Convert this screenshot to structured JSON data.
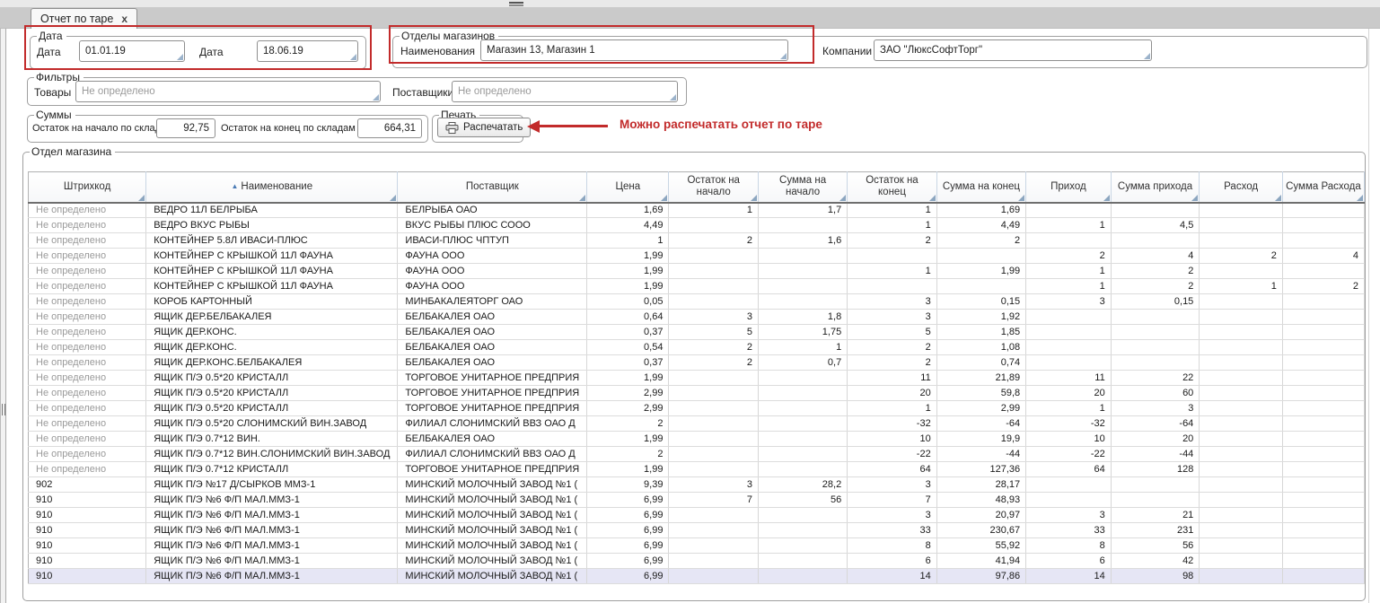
{
  "tab": {
    "title": "Отчет по таре",
    "close_glyph": "x"
  },
  "icons": {
    "tab_close": "close-icon",
    "collapse_grip": "grip-icon",
    "print": "printer-icon",
    "sort": "sort-asc-icon",
    "field_grip": "dropdown-grip-icon"
  },
  "groups": {
    "dates": {
      "legend": "Дата",
      "date_from_label": "Дата",
      "date_from": "01.01.19",
      "date_to_label": "Дата",
      "date_to": "18.06.19"
    },
    "departments": {
      "legend": "Отделы магазинов",
      "names_label": "Наименования",
      "names_value": "Магазин 13, Магазин 1",
      "company_label": "Компании",
      "company_value": "ЗАО \"ЛюксСофтТорг\""
    },
    "filters": {
      "legend": "Фильтры",
      "goods_label": "Товары",
      "goods_placeholder": "Не определено",
      "suppliers_label": "Поставщики",
      "suppliers_placeholder": "Не определено"
    },
    "sums": {
      "legend": "Суммы",
      "begin_label": "Остаток на начало по складам",
      "begin_value": "92,75",
      "end_label": "Остаток на конец по складам",
      "end_value": "664,31"
    },
    "print": {
      "legend": "Печать",
      "button_label": "Распечатать"
    }
  },
  "annotation": {
    "text": "Можно распечатать отчет по таре",
    "color": "#c22b2b"
  },
  "table": {
    "legend": "Отдел магазина",
    "undefined_text": "Не определено",
    "selected_row_index": 24,
    "columns": [
      {
        "label": "Штрихкод"
      },
      {
        "label": "Наименование",
        "sorted": "asc"
      },
      {
        "label": "Поставщик"
      },
      {
        "label": "Цена"
      },
      {
        "label": "Остаток на начало"
      },
      {
        "label": "Сумма на начало"
      },
      {
        "label": "Остаток на конец"
      },
      {
        "label": "Сумма на конец"
      },
      {
        "label": "Приход"
      },
      {
        "label": "Сумма прихода"
      },
      {
        "label": "Расход"
      },
      {
        "label": "Сумма Расхода"
      }
    ],
    "rows": [
      [
        "Не определено",
        "ВЕДРО 11Л БЕЛРЫБА",
        "БЕЛРЫБА ОАО",
        "1,69",
        "1",
        "1,7",
        "1",
        "1,69",
        "",
        "",
        "",
        ""
      ],
      [
        "Не определено",
        "ВЕДРО ВКУС РЫБЫ",
        "ВКУС РЫБЫ ПЛЮС СООО",
        "4,49",
        "",
        "",
        "1",
        "4,49",
        "1",
        "4,5",
        "",
        ""
      ],
      [
        "Не определено",
        "КОНТЕЙНЕР 5.8Л ИВАСИ-ПЛЮС",
        "ИВАСИ-ПЛЮС ЧПТУП",
        "1",
        "2",
        "1,6",
        "2",
        "2",
        "",
        "",
        "",
        ""
      ],
      [
        "Не определено",
        "КОНТЕЙНЕР С КРЫШКОЙ 11Л ФАУНА",
        "ФАУНА ООО",
        "1,99",
        "",
        "",
        "",
        "",
        "2",
        "4",
        "2",
        "4"
      ],
      [
        "Не определено",
        "КОНТЕЙНЕР С КРЫШКОЙ 11Л ФАУНА",
        "ФАУНА ООО",
        "1,99",
        "",
        "",
        "1",
        "1,99",
        "1",
        "2",
        "",
        ""
      ],
      [
        "Не определено",
        "КОНТЕЙНЕР С КРЫШКОЙ 11Л ФАУНА",
        "ФАУНА ООО",
        "1,99",
        "",
        "",
        "",
        "",
        "1",
        "2",
        "1",
        "2"
      ],
      [
        "Не определено",
        "КОРОБ КАРТОННЫЙ",
        "МИНБАКАЛЕЯТОРГ ОАО",
        "0,05",
        "",
        "",
        "3",
        "0,15",
        "3",
        "0,15",
        "",
        ""
      ],
      [
        "Не определено",
        "ЯЩИК ДЕР.БЕЛБАКАЛЕЯ",
        "БЕЛБАКАЛЕЯ ОАО",
        "0,64",
        "3",
        "1,8",
        "3",
        "1,92",
        "",
        "",
        "",
        ""
      ],
      [
        "Не определено",
        "ЯЩИК ДЕР.КОНС.",
        "БЕЛБАКАЛЕЯ ОАО",
        "0,37",
        "5",
        "1,75",
        "5",
        "1,85",
        "",
        "",
        "",
        ""
      ],
      [
        "Не определено",
        "ЯЩИК ДЕР.КОНС.",
        "БЕЛБАКАЛЕЯ ОАО",
        "0,54",
        "2",
        "1",
        "2",
        "1,08",
        "",
        "",
        "",
        ""
      ],
      [
        "Не определено",
        "ЯЩИК ДЕР.КОНС.БЕЛБАКАЛЕЯ",
        "БЕЛБАКАЛЕЯ ОАО",
        "0,37",
        "2",
        "0,7",
        "2",
        "0,74",
        "",
        "",
        "",
        ""
      ],
      [
        "Не определено",
        "ЯЩИК П/Э 0.5*20 КРИСТАЛЛ",
        "ТОРГОВОЕ УНИТАРНОЕ ПРЕДПРИЯ",
        "1,99",
        "",
        "",
        "11",
        "21,89",
        "11",
        "22",
        "",
        ""
      ],
      [
        "Не определено",
        "ЯЩИК П/Э 0.5*20 КРИСТАЛЛ",
        "ТОРГОВОЕ УНИТАРНОЕ ПРЕДПРИЯ",
        "2,99",
        "",
        "",
        "20",
        "59,8",
        "20",
        "60",
        "",
        ""
      ],
      [
        "Не определено",
        "ЯЩИК П/Э 0.5*20 КРИСТАЛЛ",
        "ТОРГОВОЕ УНИТАРНОЕ ПРЕДПРИЯ",
        "2,99",
        "",
        "",
        "1",
        "2,99",
        "1",
        "3",
        "",
        ""
      ],
      [
        "Не определено",
        "ЯЩИК П/Э 0.5*20 СЛОНИМСКИЙ ВИН.ЗАВОД",
        "ФИЛИАЛ СЛОНИМСКИЙ ВВЗ ОАО Д",
        "2",
        "",
        "",
        "-32",
        "-64",
        "-32",
        "-64",
        "",
        ""
      ],
      [
        "Не определено",
        "ЯЩИК П/Э 0.7*12 ВИН.",
        "БЕЛБАКАЛЕЯ ОАО",
        "1,99",
        "",
        "",
        "10",
        "19,9",
        "10",
        "20",
        "",
        ""
      ],
      [
        "Не определено",
        "ЯЩИК П/Э 0.7*12 ВИН.СЛОНИМСКИЙ ВИН.ЗАВОД",
        "ФИЛИАЛ СЛОНИМСКИЙ ВВЗ ОАО Д",
        "2",
        "",
        "",
        "-22",
        "-44",
        "-22",
        "-44",
        "",
        ""
      ],
      [
        "Не определено",
        "ЯЩИК П/Э 0.7*12 КРИСТАЛЛ",
        "ТОРГОВОЕ УНИТАРНОЕ ПРЕДПРИЯ",
        "1,99",
        "",
        "",
        "64",
        "127,36",
        "64",
        "128",
        "",
        ""
      ],
      [
        "902",
        "ЯЩИК П/Э №17 Д/СЫРКОВ ММЗ-1",
        "МИНСКИЙ МОЛОЧНЫЙ ЗАВОД №1 (",
        "9,39",
        "3",
        "28,2",
        "3",
        "28,17",
        "",
        "",
        "",
        ""
      ],
      [
        "910",
        "ЯЩИК П/Э №6 Ф/П МАЛ.ММЗ-1",
        "МИНСКИЙ МОЛОЧНЫЙ ЗАВОД №1 (",
        "6,99",
        "7",
        "56",
        "7",
        "48,93",
        "",
        "",
        "",
        ""
      ],
      [
        "910",
        "ЯЩИК П/Э №6 Ф/П МАЛ.ММЗ-1",
        "МИНСКИЙ МОЛОЧНЫЙ ЗАВОД №1 (",
        "6,99",
        "",
        "",
        "3",
        "20,97",
        "3",
        "21",
        "",
        ""
      ],
      [
        "910",
        "ЯЩИК П/Э №6 Ф/П МАЛ.ММЗ-1",
        "МИНСКИЙ МОЛОЧНЫЙ ЗАВОД №1 (",
        "6,99",
        "",
        "",
        "33",
        "230,67",
        "33",
        "231",
        "",
        ""
      ],
      [
        "910",
        "ЯЩИК П/Э №6 Ф/П МАЛ.ММЗ-1",
        "МИНСКИЙ МОЛОЧНЫЙ ЗАВОД №1 (",
        "6,99",
        "",
        "",
        "8",
        "55,92",
        "8",
        "56",
        "",
        ""
      ],
      [
        "910",
        "ЯЩИК П/Э №6 Ф/П МАЛ.ММЗ-1",
        "МИНСКИЙ МОЛОЧНЫЙ ЗАВОД №1 (",
        "6,99",
        "",
        "",
        "6",
        "41,94",
        "6",
        "42",
        "",
        ""
      ],
      [
        "910",
        "ЯЩИК П/Э №6 Ф/П МАЛ.ММЗ-1",
        "МИНСКИЙ МОЛОЧНЫЙ ЗАВОД №1 (",
        "6,99",
        "",
        "",
        "14",
        "97,86",
        "14",
        "98",
        "",
        ""
      ]
    ]
  },
  "colors": {
    "highlight_red": "#c22b2b",
    "selected_row": "#e6e6f5",
    "sort_accent": "#4a7ab5"
  }
}
